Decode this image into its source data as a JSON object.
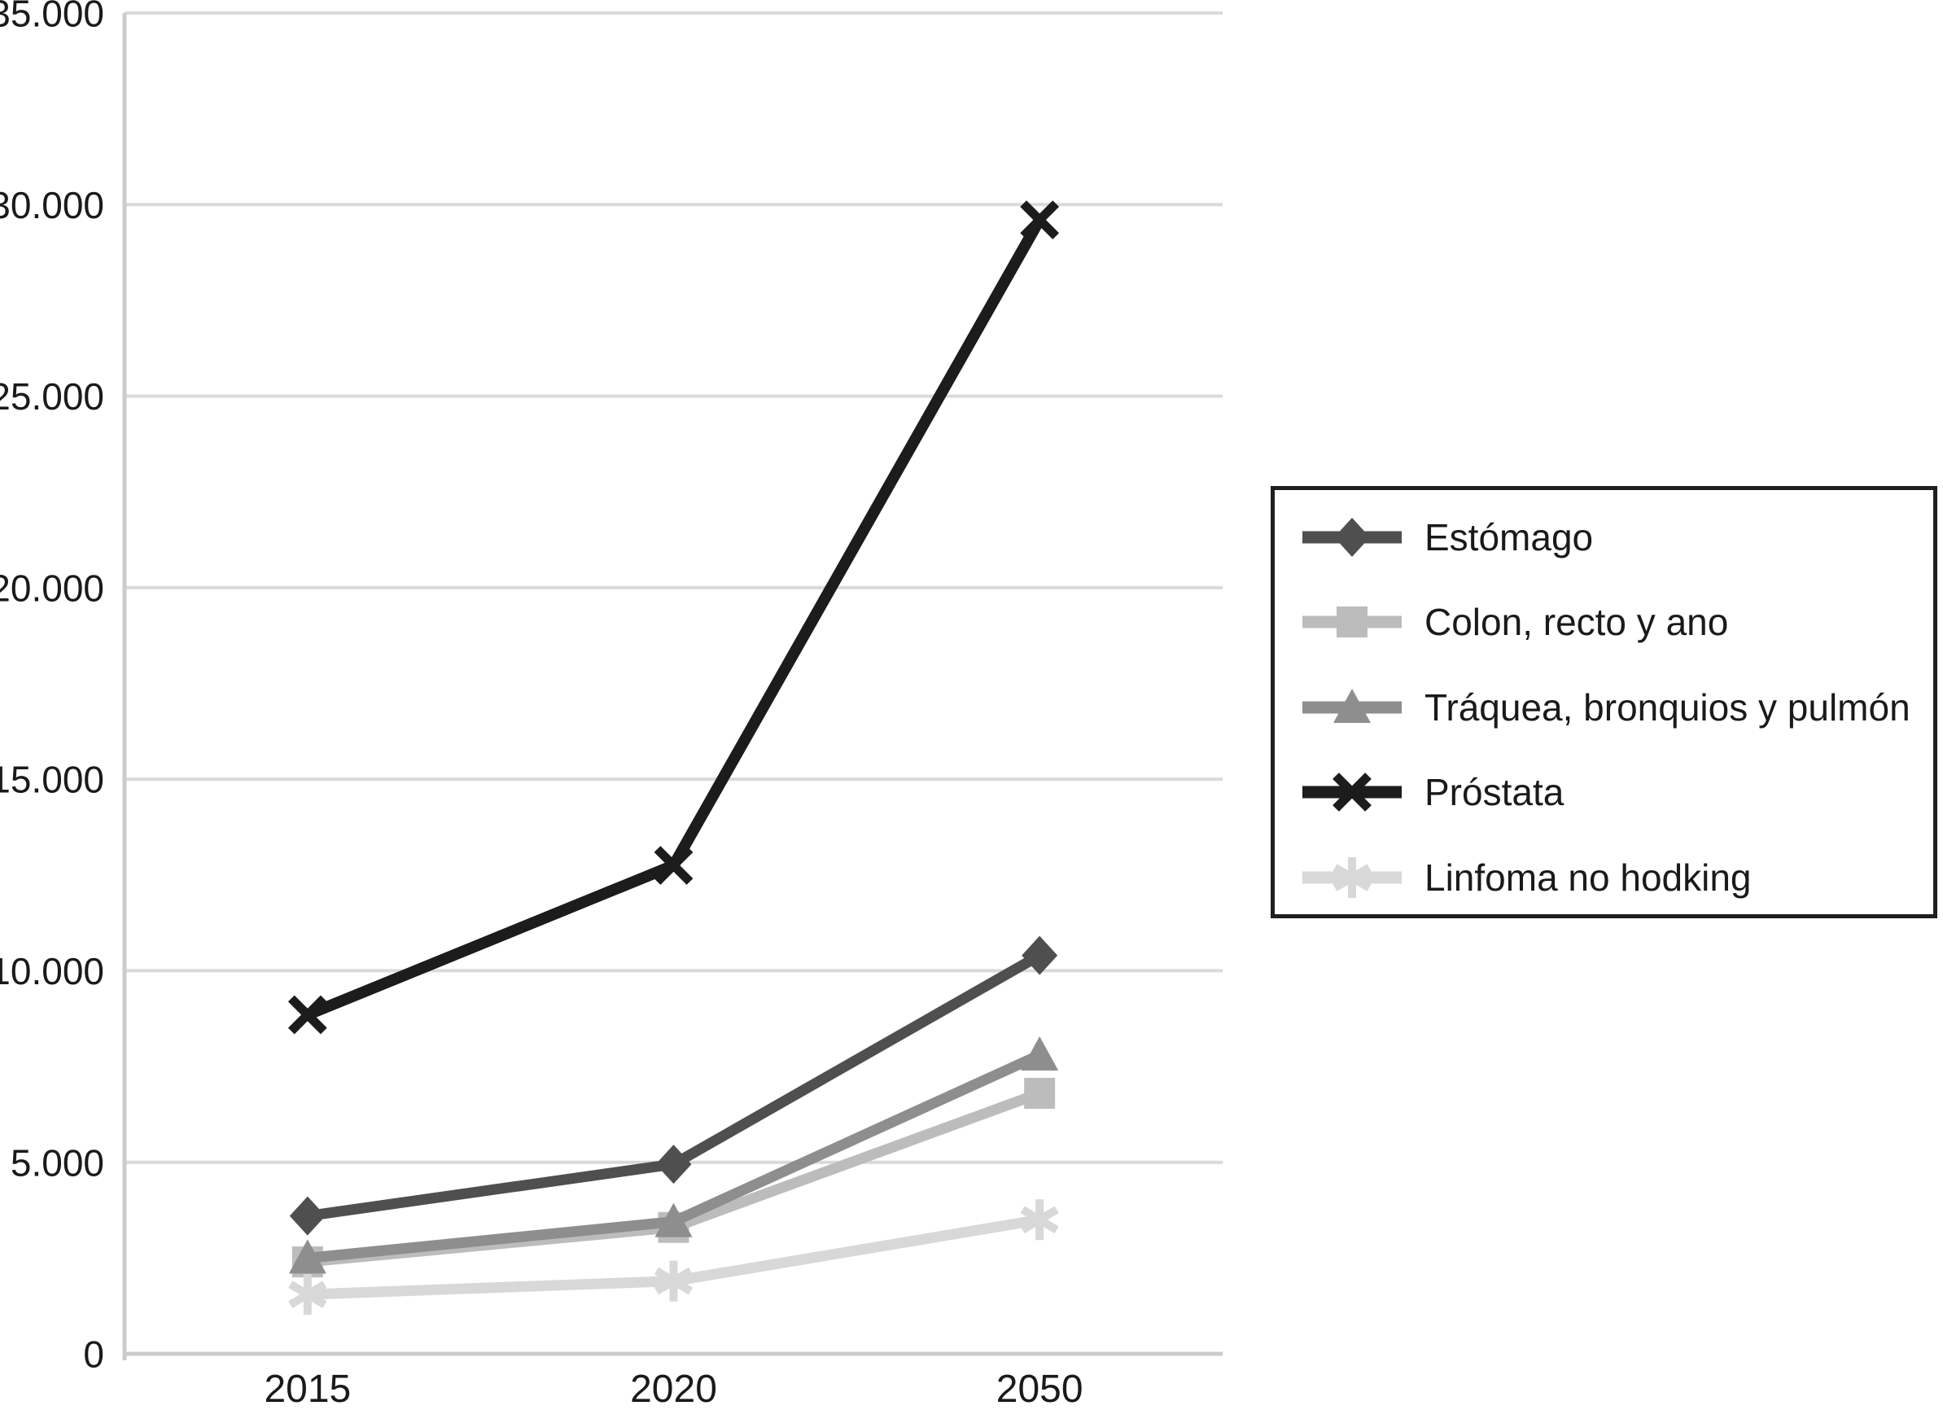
{
  "chart_data": {
    "type": "line",
    "categories": [
      "2015",
      "2020",
      "2050"
    ],
    "series": [
      {
        "id": "estomago",
        "name": "Estómago",
        "marker": "diamond",
        "color": "#4f4f4f",
        "line_width": 13,
        "values": [
          3600,
          4950,
          10400
        ]
      },
      {
        "id": "colon-recto-y-ano",
        "name": "Colon, recto y ano",
        "marker": "square",
        "color": "#bcbcbc",
        "line_width": 13,
        "values": [
          2400,
          3300,
          6800
        ]
      },
      {
        "id": "traquea-bronquios-pulmon",
        "name": "Tráquea, bronquios y pulmón",
        "marker": "triangle",
        "color": "#8e8e8e",
        "line_width": 13,
        "values": [
          2500,
          3450,
          7800
        ]
      },
      {
        "id": "prostata",
        "name": "Próstata",
        "marker": "x",
        "color": "#1c1c1c",
        "line_width": 14,
        "values": [
          8850,
          12750,
          29600
        ]
      },
      {
        "id": "linfoma-no-hodking",
        "name": "Linfoma no hodking",
        "marker": "asterisk",
        "color": "#d8d8d8",
        "line_width": 13,
        "values": [
          1550,
          1900,
          3500
        ]
      }
    ],
    "title": "",
    "xlabel": "",
    "ylabel": "",
    "ylim": [
      0,
      35000
    ],
    "ytick_interval": 5000,
    "ytick_labels": [
      "0",
      "5.000",
      "10.000",
      "15.000",
      "20.000",
      "25.000",
      "30.000",
      "35.000"
    ],
    "xtick_labels": [
      "2015",
      "2020",
      "2050"
    ],
    "grid": true,
    "legend_position": "right"
  },
  "colors": {
    "background": "#ffffff",
    "gridline": "#dadada",
    "axis": "#cccccc",
    "text": "#1a1a1a",
    "legend_border": "#1f1f1f"
  }
}
